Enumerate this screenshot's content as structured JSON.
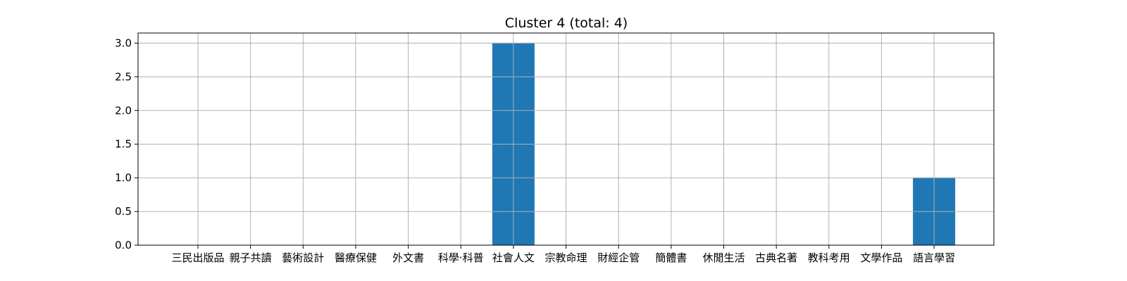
{
  "chart_data": {
    "type": "bar",
    "title": "Cluster 4 (total: 4)",
    "xlabel": "",
    "ylabel": "",
    "categories": [
      "三民出版品",
      "親子共讀",
      "藝術設計",
      "醫療保健",
      "外文書",
      "科學·科普",
      "社會人文",
      "宗教命理",
      "財經企管",
      "簡體書",
      "休閒生活",
      "古典名著",
      "教科考用",
      "文學作品",
      "語言學習"
    ],
    "values": [
      0,
      0,
      0,
      0,
      0,
      0,
      3,
      0,
      0,
      0,
      0,
      0,
      0,
      0,
      1
    ],
    "ylim": [
      0,
      3.15
    ],
    "yticks": [
      "0.0",
      "0.5",
      "1.0",
      "1.5",
      "2.0",
      "2.5",
      "3.0"
    ],
    "grid": true,
    "bar_color": "#1f77b4",
    "grid_color": "#b0b0b0"
  }
}
